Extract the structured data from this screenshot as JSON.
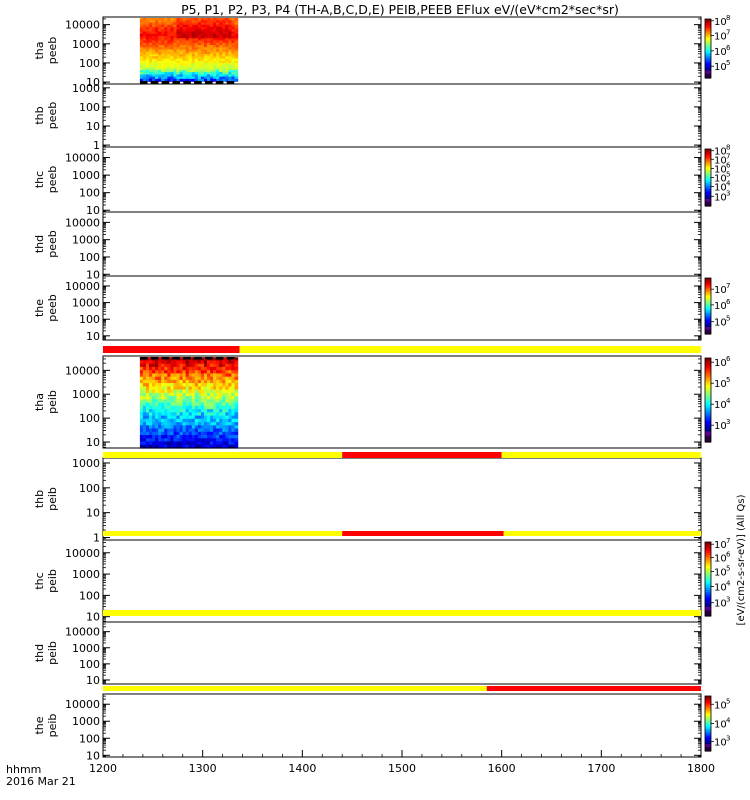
{
  "title": "P5, P1, P2, P3, P4 (TH-A,B,C,D,E) PEIB,PEEB EFlux eV/(eV*cm2*sec*sr)",
  "x_axis": {
    "label_line1": "hhmm",
    "label_line2": "2016 Mar 21",
    "range": [
      1200,
      1800
    ],
    "ticks": [
      "1200",
      "1300",
      "1400",
      "1500",
      "1600",
      "1700",
      "1800"
    ]
  },
  "colors": {
    "bar_yellow": "#ffff00",
    "bar_red": "#ff0000",
    "axis": "#000000"
  },
  "chart_data": {
    "type": "heatmap",
    "panels": [
      {
        "id": "tha-peeb",
        "label1": "tha",
        "label2": "peeb",
        "yticks": [
          "10000",
          "1000",
          "100",
          "10"
        ],
        "ymax_decade": 4.4,
        "ymin_decade": 0.9,
        "data_x": [
          1237,
          1335
        ],
        "data_kind": "electron",
        "colorbar": {
          "ticks": [
            {
              "e": "8",
              "f": 0.97
            },
            {
              "e": "7",
              "f": 0.72
            },
            {
              "e": "6",
              "f": 0.46
            },
            {
              "e": "5",
              "f": 0.2
            }
          ],
          "label": "(All Qs)"
        }
      },
      {
        "id": "thb-peeb",
        "label1": "thb",
        "label2": "peeb",
        "yticks": [
          "1000",
          "100",
          "10",
          "1"
        ],
        "ymax_decade": 3.2,
        "ymin_decade": -0.1,
        "data_x": null,
        "data_kind": null,
        "colorbar": null
      },
      {
        "id": "thc-peeb",
        "label1": "thc",
        "label2": "peeb",
        "yticks": [
          "10000",
          "1000",
          "100",
          "10"
        ],
        "ymax_decade": 4.6,
        "ymin_decade": 0.9,
        "data_x": null,
        "data_kind": null,
        "colorbar": {
          "ticks": [
            {
              "e": "8",
              "f": 0.97
            },
            {
              "e": "7",
              "f": 0.82
            },
            {
              "e": "6",
              "f": 0.66
            },
            {
              "e": "5",
              "f": 0.5
            },
            {
              "e": "4",
              "f": 0.34
            },
            {
              "e": "3",
              "f": 0.17
            }
          ],
          "label": "(All Qs)"
        }
      },
      {
        "id": "thd-peeb",
        "label1": "thd",
        "label2": "peeb",
        "yticks": [
          "10000",
          "1000",
          "100",
          "10"
        ],
        "ymax_decade": 4.6,
        "ymin_decade": 0.9,
        "data_x": null,
        "data_kind": null,
        "colorbar": null
      },
      {
        "id": "the-peeb",
        "label1": "the",
        "label2": "peeb",
        "yticks": [
          "10000",
          "1000",
          "100",
          "10"
        ],
        "ymax_decade": 4.6,
        "ymin_decade": 0.75,
        "data_x": null,
        "data_kind": null,
        "colorbar": {
          "ticks": [
            {
              "e": "7",
              "f": 0.8
            },
            {
              "e": "6",
              "f": 0.52
            },
            {
              "e": "5",
              "f": 0.22
            }
          ],
          "label": "(All Qs)"
        }
      },
      {
        "id": "tha-peib",
        "label1": "tha",
        "label2": "peib",
        "yticks": [
          "10000",
          "1000",
          "100",
          "10"
        ],
        "ymax_decade": 4.6,
        "ymin_decade": 0.75,
        "data_x": [
          1237,
          1335
        ],
        "data_kind": "ion",
        "colorbar": {
          "ticks": [
            {
              "e": "6",
              "f": 0.95
            },
            {
              "e": "5",
              "f": 0.7
            },
            {
              "e": "4",
              "f": 0.45
            },
            {
              "e": "3",
              "f": 0.2
            }
          ],
          "label": "(All Qs)"
        }
      },
      {
        "id": "thb-peib",
        "label1": "thb",
        "label2": "peib",
        "yticks": [
          "1000",
          "100",
          "10",
          "1"
        ],
        "ymax_decade": 3.2,
        "ymin_decade": -0.1,
        "data_x": null,
        "data_kind": null,
        "colorbar": null
      },
      {
        "id": "thc-peib",
        "label1": "thc",
        "label2": "peib",
        "yticks": [
          "10000",
          "1000",
          "100",
          "10"
        ],
        "ymax_decade": 4.6,
        "ymin_decade": 0.75,
        "data_x": null,
        "data_kind": null,
        "colorbar": {
          "ticks": [
            {
              "e": "7",
              "f": 0.97
            },
            {
              "e": "6",
              "f": 0.79
            },
            {
              "e": "5",
              "f": 0.6
            },
            {
              "e": "4",
              "f": 0.4
            },
            {
              "e": "3",
              "f": 0.18
            }
          ],
          "label": "(All Qs)"
        }
      },
      {
        "id": "thd-peib",
        "label1": "thd",
        "label2": "peib",
        "yticks": [
          "10000",
          "1000",
          "100",
          "10"
        ],
        "ymax_decade": 4.6,
        "ymin_decade": 0.75,
        "data_x": null,
        "data_kind": null,
        "colorbar": null
      },
      {
        "id": "the-peib",
        "label1": "the",
        "label2": "peib",
        "yticks": [
          "10000",
          "1000",
          "100",
          "10"
        ],
        "ymax_decade": 4.6,
        "ymin_decade": 0.9,
        "data_x": null,
        "data_kind": null,
        "colorbar": {
          "ticks": [
            {
              "e": "5",
              "f": 0.85
            },
            {
              "e": "4",
              "f": 0.5
            },
            {
              "e": "3",
              "f": 0.17
            }
          ],
          "label": "(All Qs)"
        }
      }
    ],
    "status_bars": [
      {
        "before_panel": 5,
        "segments": [
          {
            "from": 1200,
            "to": 1337,
            "color": "#ff0000"
          },
          {
            "from": 1337,
            "to": 1800,
            "color": "#ffff00"
          }
        ]
      },
      {
        "before_panel": 6,
        "segments": [
          {
            "from": 1200,
            "to": 1440,
            "color": "#ffff00"
          },
          {
            "from": 1440,
            "to": 1600,
            "color": "#ff0000"
          },
          {
            "from": 1600,
            "to": 1800,
            "color": "#ffff00"
          }
        ]
      },
      {
        "before_panel": 7,
        "segments": [
          {
            "from": 1200,
            "to": 1440,
            "color": "#ffff00"
          },
          {
            "from": 1440,
            "to": 1602,
            "color": "#ff0000"
          },
          {
            "from": 1602,
            "to": 1800,
            "color": "#ffff00"
          }
        ]
      },
      {
        "before_panel": 8,
        "segments": [
          {
            "from": 1200,
            "to": 1800,
            "color": "#ffff00"
          }
        ]
      },
      {
        "before_panel": 9,
        "segments": [
          {
            "from": 1200,
            "to": 1585,
            "color": "#ffff00"
          },
          {
            "from": 1585,
            "to": 1800,
            "color": "#ff0000"
          }
        ]
      }
    ],
    "colorbar_label": "[eV/(cm2-s-sr-eV)] (All Qs)"
  }
}
